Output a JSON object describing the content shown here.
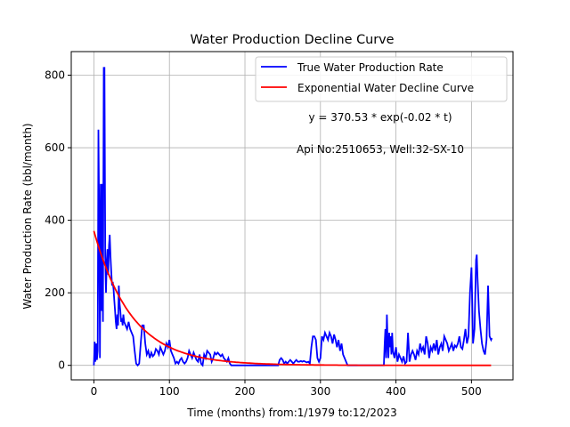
{
  "chart_data": {
    "type": "line",
    "title": "Water Production Decline Curve",
    "xlabel": "Time (months) from:1/1979 to:12/2023",
    "ylabel": "Water Production Rate (bbl/month)",
    "xlim": [
      -30,
      555
    ],
    "ylim": [
      -40,
      865
    ],
    "x_ticks": [
      0,
      100,
      200,
      300,
      400,
      500
    ],
    "y_ticks": [
      0,
      200,
      400,
      600,
      800
    ],
    "grid": true,
    "legend_position": "top-right",
    "annotations": [
      "y = 370.53 * exp(-0.02 * t)",
      "Api No:2510653, Well:32-SX-10"
    ],
    "series": [
      {
        "name": "True Water Production Rate",
        "color": "#0000ff",
        "points": [
          [
            0,
            0
          ],
          [
            1,
            65
          ],
          [
            2,
            10
          ],
          [
            3,
            60
          ],
          [
            4,
            15
          ],
          [
            5,
            40
          ],
          [
            6,
            650
          ],
          [
            7,
            400
          ],
          [
            8,
            20
          ],
          [
            9,
            500
          ],
          [
            10,
            150
          ],
          [
            11,
            500
          ],
          [
            12,
            120
          ],
          [
            13,
            820
          ],
          [
            14,
            820
          ],
          [
            15,
            300
          ],
          [
            16,
            200
          ],
          [
            17,
            280
          ],
          [
            18,
            320
          ],
          [
            19,
            250
          ],
          [
            20,
            330
          ],
          [
            21,
            360
          ],
          [
            22,
            300
          ],
          [
            23,
            260
          ],
          [
            24,
            220
          ],
          [
            25,
            230
          ],
          [
            26,
            210
          ],
          [
            27,
            180
          ],
          [
            28,
            150
          ],
          [
            29,
            120
          ],
          [
            30,
            100
          ],
          [
            31,
            140
          ],
          [
            32,
            110
          ],
          [
            33,
            220
          ],
          [
            34,
            170
          ],
          [
            35,
            150
          ],
          [
            36,
            120
          ],
          [
            37,
            130
          ],
          [
            38,
            110
          ],
          [
            39,
            140
          ],
          [
            40,
            120
          ],
          [
            42,
            110
          ],
          [
            44,
            100
          ],
          [
            46,
            120
          ],
          [
            48,
            100
          ],
          [
            50,
            90
          ],
          [
            52,
            80
          ],
          [
            54,
            40
          ],
          [
            56,
            5
          ],
          [
            58,
            0
          ],
          [
            60,
            5
          ],
          [
            62,
            60
          ],
          [
            64,
            110
          ],
          [
            66,
            110
          ],
          [
            68,
            60
          ],
          [
            70,
            30
          ],
          [
            72,
            40
          ],
          [
            74,
            20
          ],
          [
            76,
            35
          ],
          [
            78,
            25
          ],
          [
            80,
            30
          ],
          [
            82,
            45
          ],
          [
            84,
            40
          ],
          [
            86,
            30
          ],
          [
            88,
            50
          ],
          [
            90,
            40
          ],
          [
            92,
            30
          ],
          [
            94,
            40
          ],
          [
            96,
            60
          ],
          [
            98,
            50
          ],
          [
            100,
            70
          ],
          [
            102,
            40
          ],
          [
            104,
            30
          ],
          [
            106,
            20
          ],
          [
            108,
            5
          ],
          [
            110,
            10
          ],
          [
            112,
            5
          ],
          [
            114,
            15
          ],
          [
            116,
            20
          ],
          [
            118,
            10
          ],
          [
            120,
            5
          ],
          [
            122,
            10
          ],
          [
            124,
            20
          ],
          [
            126,
            40
          ],
          [
            128,
            30
          ],
          [
            130,
            20
          ],
          [
            132,
            35
          ],
          [
            134,
            25
          ],
          [
            136,
            15
          ],
          [
            138,
            10
          ],
          [
            140,
            30
          ],
          [
            142,
            5
          ],
          [
            144,
            0
          ],
          [
            146,
            30
          ],
          [
            148,
            20
          ],
          [
            150,
            40
          ],
          [
            152,
            35
          ],
          [
            154,
            30
          ],
          [
            156,
            10
          ],
          [
            158,
            20
          ],
          [
            160,
            35
          ],
          [
            162,
            30
          ],
          [
            164,
            35
          ],
          [
            166,
            30
          ],
          [
            168,
            25
          ],
          [
            170,
            30
          ],
          [
            172,
            20
          ],
          [
            174,
            15
          ],
          [
            176,
            10
          ],
          [
            178,
            20
          ],
          [
            180,
            5
          ],
          [
            182,
            0
          ],
          [
            186,
            0
          ],
          [
            190,
            0
          ],
          [
            195,
            0
          ],
          [
            200,
            0
          ],
          [
            205,
            0
          ],
          [
            210,
            0
          ],
          [
            215,
            0
          ],
          [
            220,
            0
          ],
          [
            225,
            0
          ],
          [
            230,
            0
          ],
          [
            235,
            0
          ],
          [
            240,
            0
          ],
          [
            244,
            0
          ],
          [
            246,
            15
          ],
          [
            248,
            20
          ],
          [
            250,
            15
          ],
          [
            252,
            5
          ],
          [
            254,
            10
          ],
          [
            256,
            5
          ],
          [
            258,
            10
          ],
          [
            260,
            15
          ],
          [
            262,
            10
          ],
          [
            264,
            5
          ],
          [
            266,
            10
          ],
          [
            268,
            15
          ],
          [
            270,
            10
          ],
          [
            272,
            10
          ],
          [
            274,
            12
          ],
          [
            276,
            10
          ],
          [
            278,
            12
          ],
          [
            280,
            10
          ],
          [
            282,
            8
          ],
          [
            284,
            10
          ],
          [
            286,
            5
          ],
          [
            288,
            50
          ],
          [
            290,
            80
          ],
          [
            292,
            80
          ],
          [
            294,
            70
          ],
          [
            296,
            20
          ],
          [
            298,
            10
          ],
          [
            300,
            20
          ],
          [
            302,
            80
          ],
          [
            304,
            70
          ],
          [
            306,
            90
          ],
          [
            308,
            80
          ],
          [
            310,
            70
          ],
          [
            312,
            90
          ],
          [
            314,
            80
          ],
          [
            316,
            60
          ],
          [
            318,
            85
          ],
          [
            320,
            70
          ],
          [
            322,
            50
          ],
          [
            324,
            70
          ],
          [
            326,
            40
          ],
          [
            328,
            60
          ],
          [
            330,
            30
          ],
          [
            332,
            20
          ],
          [
            334,
            10
          ],
          [
            336,
            0
          ],
          [
            340,
            0
          ],
          [
            345,
            0
          ],
          [
            350,
            0
          ],
          [
            355,
            0
          ],
          [
            360,
            0
          ],
          [
            365,
            0
          ],
          [
            370,
            0
          ],
          [
            375,
            0
          ],
          [
            380,
            0
          ],
          [
            384,
            0
          ],
          [
            385,
            60
          ],
          [
            386,
            100
          ],
          [
            387,
            20
          ],
          [
            388,
            140
          ],
          [
            389,
            60
          ],
          [
            390,
            20
          ],
          [
            391,
            90
          ],
          [
            392,
            50
          ],
          [
            393,
            80
          ],
          [
            394,
            30
          ],
          [
            395,
            90
          ],
          [
            396,
            40
          ],
          [
            398,
            20
          ],
          [
            400,
            50
          ],
          [
            402,
            10
          ],
          [
            404,
            30
          ],
          [
            406,
            20
          ],
          [
            408,
            10
          ],
          [
            410,
            25
          ],
          [
            412,
            5
          ],
          [
            414,
            10
          ],
          [
            416,
            90
          ],
          [
            418,
            10
          ],
          [
            420,
            30
          ],
          [
            422,
            40
          ],
          [
            424,
            30
          ],
          [
            426,
            15
          ],
          [
            428,
            40
          ],
          [
            430,
            30
          ],
          [
            432,
            60
          ],
          [
            434,
            40
          ],
          [
            436,
            50
          ],
          [
            438,
            30
          ],
          [
            440,
            80
          ],
          [
            442,
            60
          ],
          [
            444,
            20
          ],
          [
            446,
            50
          ],
          [
            448,
            40
          ],
          [
            450,
            60
          ],
          [
            452,
            40
          ],
          [
            454,
            70
          ],
          [
            456,
            30
          ],
          [
            458,
            50
          ],
          [
            460,
            60
          ],
          [
            462,
            40
          ],
          [
            464,
            80
          ],
          [
            466,
            70
          ],
          [
            468,
            60
          ],
          [
            470,
            40
          ],
          [
            472,
            50
          ],
          [
            474,
            60
          ],
          [
            476,
            40
          ],
          [
            478,
            55
          ],
          [
            480,
            50
          ],
          [
            482,
            60
          ],
          [
            484,
            80
          ],
          [
            486,
            50
          ],
          [
            488,
            45
          ],
          [
            490,
            70
          ],
          [
            492,
            100
          ],
          [
            494,
            60
          ],
          [
            496,
            80
          ],
          [
            498,
            200
          ],
          [
            500,
            270
          ],
          [
            501,
            180
          ],
          [
            502,
            60
          ],
          [
            504,
            100
          ],
          [
            506,
            290
          ],
          [
            507,
            305
          ],
          [
            508,
            240
          ],
          [
            510,
            150
          ],
          [
            512,
            100
          ],
          [
            514,
            60
          ],
          [
            516,
            40
          ],
          [
            518,
            30
          ],
          [
            520,
            70
          ],
          [
            522,
            220
          ],
          [
            524,
            80
          ],
          [
            526,
            70
          ],
          [
            527,
            75
          ]
        ]
      },
      {
        "name": "Exponential Water Decline Curve",
        "color": "#ff0000",
        "function": {
          "a": 370.53,
          "b": -0.02,
          "t_start": 0,
          "t_end": 527
        }
      }
    ]
  }
}
